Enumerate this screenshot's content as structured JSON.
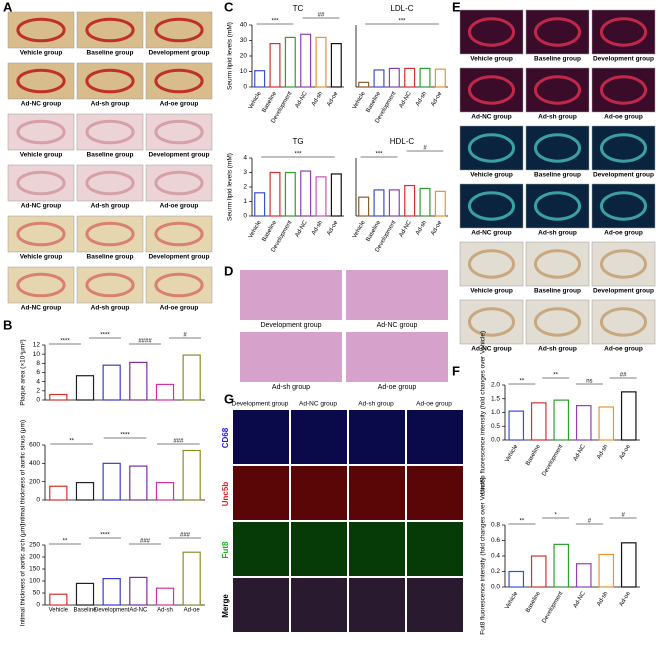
{
  "panels": {
    "letters": [
      "A",
      "B",
      "C",
      "D",
      "E",
      "F",
      "G"
    ],
    "groups": [
      "Vehicle group",
      "Baseline group",
      "Development group",
      "Ad-NC group",
      "Ad-sh group",
      "Ad-oe group"
    ],
    "stains": [
      "CD68",
      "Unc5b",
      "Fut8",
      "Merge"
    ]
  },
  "chart_data": [
    {
      "type": "bar",
      "ylabel": "Plaque area (×10⁴μm²)",
      "values": [
        1.2,
        5.3,
        7.6,
        8.2,
        3.4,
        9.8
      ],
      "colors": [
        "#d9302c",
        "#222222",
        "#3b3bd0",
        "#7a2e9e",
        "#d62ea0",
        "#8a8a2a"
      ],
      "ylim": [
        0,
        12
      ],
      "yticks": [
        0,
        2,
        4,
        6,
        8,
        10,
        12
      ],
      "annotations": [
        "****",
        "****",
        "####",
        "#"
      ]
    },
    {
      "type": "bar",
      "ylabel": "Intimal thickness of aortic sinus (μm)",
      "values": [
        150,
        190,
        400,
        370,
        190,
        540
      ],
      "colors": [
        "#d9302c",
        "#222222",
        "#3b3bd0",
        "#7a2e9e",
        "#d62ea0",
        "#8a8a2a"
      ],
      "ylim": [
        0,
        600
      ],
      "yticks": [
        0,
        200,
        400,
        600
      ],
      "annotations": [
        "**",
        "****",
        "###"
      ]
    },
    {
      "type": "bar",
      "ylabel": "Intimal thickness of aortic arch (μm)",
      "categories": [
        "Vehicle",
        "Baseline",
        "Development",
        "Ad-NC",
        "Ad-sh",
        "Ad-oe"
      ],
      "values": [
        45,
        90,
        110,
        115,
        70,
        220
      ],
      "colors": [
        "#d9302c",
        "#222222",
        "#3b3bd0",
        "#7a2e9e",
        "#d62ea0",
        "#8a8a2a"
      ],
      "ylim": [
        0,
        250
      ],
      "yticks": [
        0,
        50,
        100,
        150,
        200,
        250
      ],
      "annotations": [
        "**",
        "****",
        "###",
        "###"
      ]
    },
    {
      "type": "bar",
      "title": "TC",
      "ylabel": "Seurm lipid levels (mM)",
      "categories": [
        "Vehicle",
        "Baseline",
        "Development",
        "Ad-NC",
        "Ad-sh",
        "Ad-oe"
      ],
      "values": [
        10.5,
        28,
        32,
        34,
        32,
        28
      ],
      "colors": [
        "#3b4fd0",
        "#d9302c",
        "#2ca02c",
        "#8e3fb5",
        "#f09030",
        "#111111"
      ],
      "ylim": [
        0,
        40
      ],
      "yticks": [
        0,
        10,
        20,
        30,
        40
      ],
      "annotations": [
        "***",
        "##"
      ]
    },
    {
      "type": "bar",
      "title": "LDL-C",
      "categories": [
        "Vehicle",
        "Baseline",
        "Development",
        "Ad-NC",
        "Ad-sh",
        "Ad-oe"
      ],
      "values": [
        3,
        11,
        12,
        12,
        12,
        11.5
      ],
      "colors": [
        "#8a5a30",
        "#3b4fd0",
        "#8e3fb5",
        "#d9302c",
        "#2ca02c",
        "#f09030"
      ],
      "ylim": [
        0,
        40
      ],
      "annotations": [
        "***"
      ]
    },
    {
      "type": "bar",
      "title": "TG",
      "ylabel": "Seurm lipid levels (mM)",
      "categories": [
        "Vehicle",
        "Baseline",
        "Development",
        "Ad-NC",
        "Ad-sh",
        "Ad-oe"
      ],
      "values": [
        1.6,
        3.0,
        3.0,
        3.1,
        2.7,
        2.9
      ],
      "colors": [
        "#3b4fd0",
        "#d9302c",
        "#2ca02c",
        "#8e3fb5",
        "#d050c0",
        "#111111"
      ],
      "ylim": [
        0,
        4
      ],
      "yticks": [
        0,
        1,
        2,
        3,
        4
      ],
      "annotations": [
        "***"
      ]
    },
    {
      "type": "bar",
      "title": "HDL-C",
      "categories": [
        "Vehicle",
        "Baseline",
        "Development",
        "Ad-NC",
        "Ad-sh",
        "Ad-oe"
      ],
      "values": [
        1.3,
        1.8,
        1.8,
        2.1,
        1.9,
        1.7
      ],
      "colors": [
        "#8a5a30",
        "#3b4fd0",
        "#8e3fb5",
        "#d9302c",
        "#2ca02c",
        "#f09030"
      ],
      "ylim": [
        0,
        4
      ],
      "annotations": [
        "***",
        "#"
      ]
    },
    {
      "type": "bar",
      "ylabel": "Unc5b fluorescence intensity (fold changes over Vehicle)",
      "categories": [
        "Vehicle",
        "Baseline",
        "Development",
        "Ad-NC",
        "Ad-sh",
        "Ad-oe"
      ],
      "values": [
        1.05,
        1.35,
        1.45,
        1.25,
        1.2,
        1.75
      ],
      "colors": [
        "#3b4fd0",
        "#d9302c",
        "#2ca02c",
        "#8e3fb5",
        "#f09030",
        "#111111"
      ],
      "ylim": [
        0,
        2
      ],
      "yticks": [
        {
          "value": 0,
          "label": "0.0"
        },
        0.5,
        {
          "value": 1,
          "label": "1.0"
        },
        1.5,
        {
          "value": 2,
          "label": "2.0"
        }
      ],
      "annotations": [
        "**",
        "**",
        "ns",
        "##"
      ]
    },
    {
      "type": "bar",
      "ylabel": "Fut8 fluorescence intensity (fold changes over Vehicle)",
      "categories": [
        "Vehicle",
        "Baseline",
        "Development",
        "Ad-NC",
        "Ad-sh",
        "Ad-oe"
      ],
      "values": [
        0.2,
        0.4,
        0.55,
        0.3,
        0.42,
        0.57
      ],
      "colors": [
        "#3b4fd0",
        "#d9302c",
        "#2ca02c",
        "#8e3fb5",
        "#f09030",
        "#111111"
      ],
      "ylim": [
        0,
        0.8
      ],
      "yticks": [
        {
          "value": 0,
          "label": "0.0"
        },
        0.2,
        0.4,
        0.6,
        0.8
      ],
      "annotations": [
        "**",
        "*",
        "#",
        "#"
      ]
    }
  ]
}
